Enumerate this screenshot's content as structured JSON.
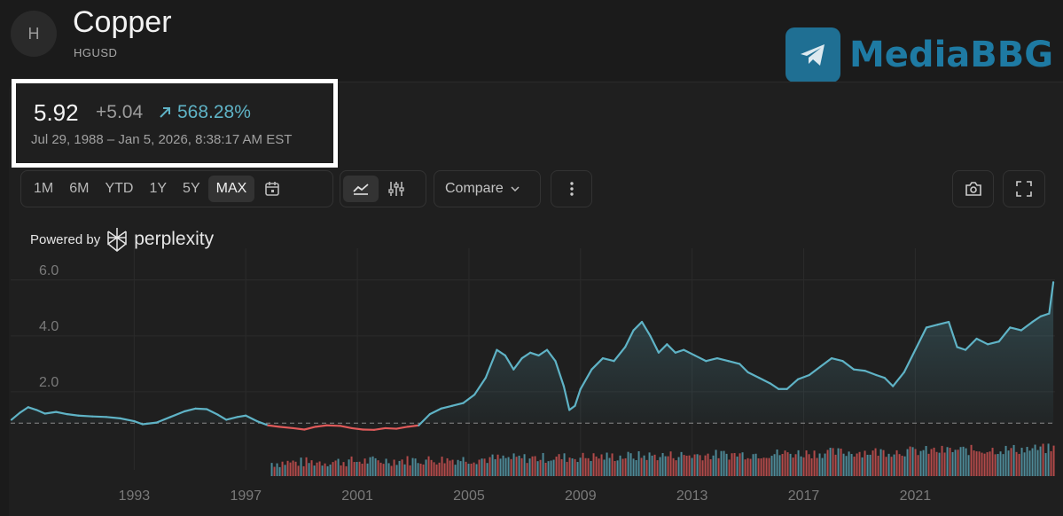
{
  "header": {
    "avatar_letter": "H",
    "title": "Copper",
    "ticker": "HGUSD"
  },
  "watermark": {
    "icon": "telegram-icon",
    "text": "MediaBBG"
  },
  "summary": {
    "price": "5.92",
    "change": "+5.04",
    "change_pct": "568.28%",
    "range": "Jul 29, 1988 – Jan 5, 2026, 8:38:17 AM EST"
  },
  "toolbar": {
    "timeframes": [
      "1M",
      "6M",
      "YTD",
      "1Y",
      "5Y",
      "MAX"
    ],
    "active_timeframe": "MAX",
    "compare_label": "Compare",
    "icons": [
      "calendar-icon",
      "line-chart-icon",
      "sliders-icon",
      "more-vertical-icon",
      "camera-icon",
      "fullscreen-icon"
    ]
  },
  "powered": {
    "prefix": "Powered by",
    "brand": "perplexity"
  },
  "colors": {
    "up": "#5fb3c6",
    "down": "#e05a5a",
    "background": "#1b1b1b"
  },
  "chart_data": {
    "type": "area",
    "baseline": 0.88,
    "ylim": [
      0,
      6.5
    ],
    "xlim": [
      1988.57,
      2026.01
    ],
    "yticks": [
      "6.0",
      "4.0",
      "2.0"
    ],
    "ytick_values": [
      6,
      4,
      2
    ],
    "xticks": [
      "1993",
      "1997",
      "2001",
      "2005",
      "2009",
      "2013",
      "2017",
      "2021"
    ],
    "xtick_values": [
      1993,
      1997,
      2001,
      2005,
      2009,
      2013,
      2017,
      2021
    ],
    "series": [
      {
        "x": [
          1988.6,
          1988.9,
          1989.2,
          1989.5,
          1989.8,
          1990.2,
          1990.6,
          1991.0,
          1991.5,
          1992.0,
          1992.5,
          1993.0,
          1993.3,
          1993.8,
          1994.3,
          1994.8,
          1995.2,
          1995.6,
          1996.0,
          1996.3,
          1996.7,
          1997.0,
          1997.4,
          1997.8,
          1998.2,
          1998.7,
          1999.1,
          1999.5,
          1999.9,
          2000.4,
          2000.8,
          2001.2,
          2001.6,
          2002.0,
          2002.4,
          2002.8,
          2003.2,
          2003.6,
          2004.0,
          2004.4,
          2004.8,
          2005.2,
          2005.6,
          2006.0,
          2006.3,
          2006.6,
          2006.9,
          2007.2,
          2007.5,
          2007.8,
          2008.1,
          2008.4,
          2008.6,
          2008.8,
          2009.0,
          2009.4,
          2009.8,
          2010.2,
          2010.6,
          2010.9,
          2011.2,
          2011.5,
          2011.8,
          2012.1,
          2012.4,
          2012.7,
          2013.1,
          2013.5,
          2013.9,
          2014.3,
          2014.7,
          2015.0,
          2015.4,
          2015.8,
          2016.1,
          2016.4,
          2016.8,
          2017.2,
          2017.6,
          2018.0,
          2018.4,
          2018.8,
          2019.2,
          2019.6,
          2019.9,
          2020.2,
          2020.6,
          2021.0,
          2021.4,
          2021.8,
          2022.2,
          2022.5,
          2022.8,
          2023.2,
          2023.6,
          2024.0,
          2024.4,
          2024.8,
          2025.2,
          2025.5,
          2025.8,
          2025.95
        ],
        "y": [
          1.0,
          1.25,
          1.45,
          1.35,
          1.22,
          1.28,
          1.2,
          1.15,
          1.12,
          1.1,
          1.05,
          0.95,
          0.84,
          0.9,
          1.1,
          1.3,
          1.4,
          1.38,
          1.18,
          1.0,
          1.1,
          1.15,
          0.95,
          0.8,
          0.75,
          0.7,
          0.65,
          0.75,
          0.8,
          0.78,
          0.7,
          0.65,
          0.64,
          0.7,
          0.68,
          0.75,
          0.8,
          1.2,
          1.4,
          1.5,
          1.6,
          1.9,
          2.5,
          3.5,
          3.3,
          2.8,
          3.2,
          3.4,
          3.3,
          3.5,
          3.1,
          2.2,
          1.35,
          1.5,
          2.1,
          2.8,
          3.2,
          3.1,
          3.6,
          4.2,
          4.5,
          4.0,
          3.4,
          3.7,
          3.4,
          3.5,
          3.3,
          3.1,
          3.2,
          3.1,
          3.0,
          2.7,
          2.5,
          2.3,
          2.1,
          2.1,
          2.45,
          2.6,
          2.9,
          3.2,
          3.1,
          2.8,
          2.75,
          2.6,
          2.5,
          2.2,
          2.7,
          3.5,
          4.3,
          4.4,
          4.5,
          3.6,
          3.5,
          3.9,
          3.7,
          3.8,
          4.3,
          4.2,
          4.5,
          4.7,
          4.8,
          5.92
        ]
      }
    ],
    "volume": {
      "start": 1997.9,
      "end": 2026.0
    }
  }
}
